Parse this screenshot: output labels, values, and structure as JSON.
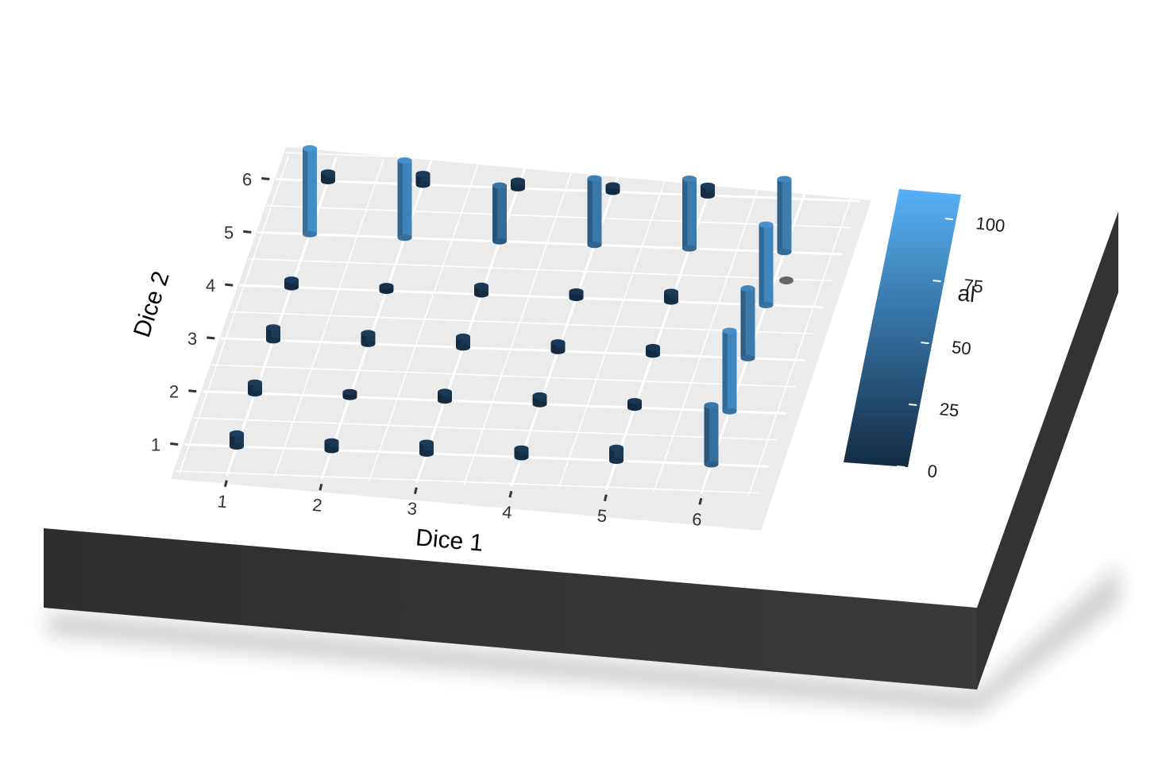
{
  "chart_data": {
    "type": "bar",
    "title": "",
    "xlabel": "Dice 1",
    "ylabel": "Dice 2",
    "x_ticks": [
      "1",
      "2",
      "3",
      "4",
      "5",
      "6"
    ],
    "y_ticks": [
      "1",
      "2",
      "3",
      "4",
      "5",
      "6"
    ],
    "legend": {
      "title_fragment": "al",
      "placement": "right",
      "ticks": [
        "0",
        "25",
        "50",
        "75",
        "100"
      ],
      "range": [
        0,
        110
      ],
      "color_low": "#132b43",
      "color_high": "#56b1f7"
    },
    "grid": true,
    "panel_color": "#ebebeb",
    "base_color": "#333333",
    "points": [
      {
        "x": 1,
        "y": 1,
        "value": 12
      },
      {
        "x": 2,
        "y": 1,
        "value": 8
      },
      {
        "x": 3,
        "y": 1,
        "value": 10
      },
      {
        "x": 4,
        "y": 1,
        "value": 8
      },
      {
        "x": 5,
        "y": 1,
        "value": 12
      },
      {
        "x": 6,
        "y": 1,
        "value": 55
      },
      {
        "x": 1,
        "y": 2,
        "value": 10
      },
      {
        "x": 2,
        "y": 2,
        "value": 3
      },
      {
        "x": 3,
        "y": 2,
        "value": 8
      },
      {
        "x": 4,
        "y": 2,
        "value": 8
      },
      {
        "x": 5,
        "y": 2,
        "value": 6
      },
      {
        "x": 6,
        "y": 2,
        "value": 75
      },
      {
        "x": 1,
        "y": 3,
        "value": 12
      },
      {
        "x": 2,
        "y": 3,
        "value": 10
      },
      {
        "x": 3,
        "y": 3,
        "value": 10
      },
      {
        "x": 4,
        "y": 3,
        "value": 8
      },
      {
        "x": 5,
        "y": 3,
        "value": 7
      },
      {
        "x": 6,
        "y": 3,
        "value": 65
      },
      {
        "x": 1,
        "y": 4,
        "value": 7
      },
      {
        "x": 2,
        "y": 4,
        "value": 3
      },
      {
        "x": 3,
        "y": 4,
        "value": 8
      },
      {
        "x": 4,
        "y": 4,
        "value": 6
      },
      {
        "x": 5,
        "y": 4,
        "value": 9
      },
      {
        "x": 6,
        "y": 4,
        "value": 75
      },
      {
        "x": 1,
        "y": 5,
        "value": 80
      },
      {
        "x": 2,
        "y": 5,
        "value": 72
      },
      {
        "x": 3,
        "y": 5,
        "value": 52
      },
      {
        "x": 4,
        "y": 5,
        "value": 62
      },
      {
        "x": 5,
        "y": 5,
        "value": 65
      },
      {
        "x": 6,
        "y": 5,
        "value": 68
      },
      {
        "x": 1,
        "y": 6,
        "value": 8
      },
      {
        "x": 2,
        "y": 6,
        "value": 10
      },
      {
        "x": 3,
        "y": 6,
        "value": 7
      },
      {
        "x": 4,
        "y": 6,
        "value": 6
      },
      {
        "x": 5,
        "y": 6,
        "value": 9
      },
      {
        "x": 6,
        "y": 6,
        "value": 0
      }
    ]
  }
}
